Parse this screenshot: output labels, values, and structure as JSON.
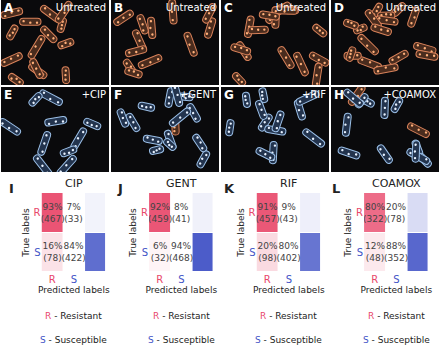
{
  "panels": [
    {
      "letter": "A",
      "text": "Untreated"
    },
    {
      "letter": "B",
      "text": "Untreated"
    },
    {
      "letter": "C",
      "text": "Untreated"
    },
    {
      "letter": "D",
      "text": "Untreated"
    },
    {
      "letter": "E",
      "text": "+CIP"
    },
    {
      "letter": "F",
      "text": "+GENT"
    },
    {
      "letter": "G",
      "text": "+RIF"
    },
    {
      "letter": "H",
      "text": "+COAMOX"
    }
  ],
  "chart_data": [
    {
      "type": "heatmap",
      "letter": "I",
      "title": "CIP",
      "x_label": "Predicted labels",
      "y_label": "True labels",
      "categories": [
        "R",
        "S"
      ],
      "colors": [
        "#e8476a",
        "#4152c6"
      ],
      "cells": [
        [
          93,
          7
        ],
        [
          16,
          84
        ]
      ],
      "value_labels": [
        [
          "93%",
          "7%"
        ],
        [
          "16%",
          "84%"
        ]
      ],
      "count_labels": [
        [
          "(467)",
          "(33)"
        ],
        [
          "(78)",
          "(422)"
        ]
      ],
      "zlim": [
        0,
        100
      ],
      "key": [
        {
          "label": "R",
          "text": " - Resistant"
        },
        {
          "label": "S",
          "text": " - Susceptible"
        }
      ]
    },
    {
      "type": "heatmap",
      "letter": "J",
      "title": "GENT",
      "x_label": "Predicted labels",
      "y_label": "True labels",
      "categories": [
        "R",
        "S"
      ],
      "colors": [
        "#e8476a",
        "#4152c6"
      ],
      "cells": [
        [
          92,
          8
        ],
        [
          6,
          94
        ]
      ],
      "value_labels": [
        [
          "92%",
          "8%"
        ],
        [
          "6%",
          "94%"
        ]
      ],
      "count_labels": [
        [
          "(459)",
          "(41)"
        ],
        [
          "(32)",
          "(468)"
        ]
      ],
      "zlim": [
        0,
        100
      ],
      "key": [
        {
          "label": "R",
          "text": " - Resistant"
        },
        {
          "label": "S",
          "text": " - Susceptible"
        }
      ]
    },
    {
      "type": "heatmap",
      "letter": "K",
      "title": "RIF",
      "x_label": "Predicted labels",
      "y_label": "True labels",
      "categories": [
        "R",
        "S"
      ],
      "colors": [
        "#e8476a",
        "#4152c6"
      ],
      "cells": [
        [
          91,
          9
        ],
        [
          20,
          80
        ]
      ],
      "value_labels": [
        [
          "91%",
          "9%"
        ],
        [
          "20%",
          "80%"
        ]
      ],
      "count_labels": [
        [
          "(457)",
          "(43)"
        ],
        [
          "(98)",
          "(402)"
        ]
      ],
      "zlim": [
        0,
        100
      ],
      "key": [
        {
          "label": "R",
          "text": " - Resistant"
        },
        {
          "label": "S",
          "text": " - Susceptible"
        }
      ]
    },
    {
      "type": "heatmap",
      "letter": "L",
      "title": "COAMOX",
      "x_label": "Predicted labels",
      "y_label": "True labels",
      "categories": [
        "R",
        "S"
      ],
      "colors": [
        "#e8476a",
        "#4152c6"
      ],
      "cells": [
        [
          80,
          20
        ],
        [
          12,
          88
        ]
      ],
      "value_labels": [
        [
          "80%",
          "20%"
        ],
        [
          "12%",
          "88%"
        ]
      ],
      "count_labels": [
        [
          "(322)",
          "(78)"
        ],
        [
          "(48)",
          "(352)"
        ]
      ],
      "zlim": [
        0,
        100
      ],
      "key": [
        {
          "label": "R",
          "text": " - Resistant"
        },
        {
          "label": "S",
          "text": " - Susceptible"
        }
      ]
    }
  ]
}
